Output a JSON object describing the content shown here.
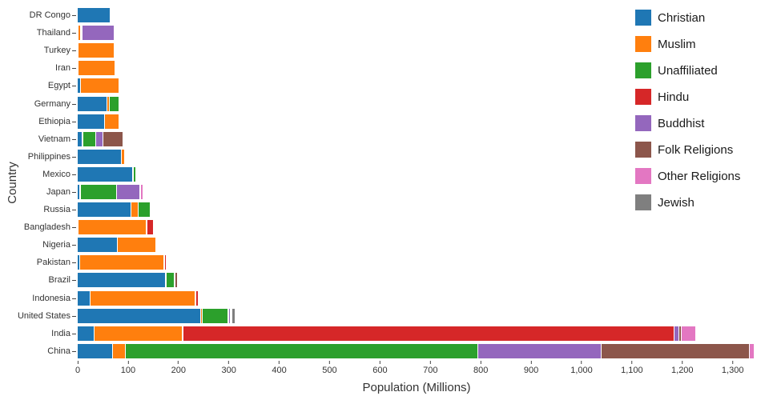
{
  "chart_data": {
    "type": "bar",
    "orientation": "horizontal",
    "stacked": true,
    "title": "",
    "xlabel": "Population (Millions)",
    "ylabel": "Country",
    "xlim": [
      0,
      1345
    ],
    "x_ticks": [
      0,
      100,
      200,
      300,
      400,
      500,
      600,
      700,
      800,
      900,
      1000,
      1100,
      1200,
      1300
    ],
    "grid": false,
    "legend_position": "top-right",
    "series": [
      {
        "name": "Christian",
        "color": "#1f77b4"
      },
      {
        "name": "Muslim",
        "color": "#ff7f0e"
      },
      {
        "name": "Unaffiliated",
        "color": "#2ca02c"
      },
      {
        "name": "Hindu",
        "color": "#d62728"
      },
      {
        "name": "Buddhist",
        "color": "#9467bd"
      },
      {
        "name": "Folk Religions",
        "color": "#8c564b"
      },
      {
        "name": "Other Religions",
        "color": "#e377c2"
      },
      {
        "name": "Jewish",
        "color": "#7f7f7f"
      }
    ],
    "rows": [
      {
        "country": "DR Congo",
        "values": [
          63.2,
          1.0,
          0.1,
          0,
          0,
          1.8,
          0,
          0
        ]
      },
      {
        "country": "Thailand",
        "values": [
          0.6,
          3.8,
          0.2,
          0.1,
          64.4,
          0.4,
          0,
          0
        ]
      },
      {
        "country": "Turkey",
        "values": [
          0.3,
          71.3,
          0.9,
          0,
          0,
          0,
          0.2,
          0
        ]
      },
      {
        "country": "Iran",
        "values": [
          0.3,
          73.6,
          0.2,
          0,
          0,
          0,
          0.1,
          0
        ]
      },
      {
        "country": "Egypt",
        "values": [
          4.3,
          76.8,
          0.2,
          0,
          0,
          0,
          0,
          0
        ]
      },
      {
        "country": "Germany",
        "values": [
          56.5,
          4.8,
          20.2,
          0,
          0.2,
          0,
          0.1,
          0.2
        ]
      },
      {
        "country": "Ethiopia",
        "values": [
          52.1,
          28.7,
          0.4,
          0,
          0,
          2.3,
          0,
          0
        ]
      },
      {
        "country": "Vietnam",
        "values": [
          7.2,
          0.2,
          26.0,
          0,
          14.4,
          39.8,
          0.2,
          0
        ]
      },
      {
        "country": "Philippines",
        "values": [
          86.4,
          5.1,
          0.1,
          0,
          0,
          1.4,
          0.1,
          0
        ]
      },
      {
        "country": "Mexico",
        "values": [
          107.8,
          0.1,
          5.3,
          0,
          0,
          0,
          0,
          0.1
        ]
      },
      {
        "country": "Japan",
        "values": [
          2.9,
          0.2,
          72.1,
          0,
          45.8,
          0.4,
          5.0,
          0
        ]
      },
      {
        "country": "Russia",
        "values": [
          105.2,
          14.3,
          23.2,
          0,
          0.1,
          0.2,
          0,
          0.2
        ]
      },
      {
        "country": "Bangladesh",
        "values": [
          0.7,
          134.4,
          0.4,
          13.5,
          0.8,
          0,
          0,
          0
        ]
      },
      {
        "country": "Nigeria",
        "values": [
          78.1,
          76.9,
          0.7,
          0,
          0,
          1.5,
          0.8,
          0
        ]
      },
      {
        "country": "Pakistan",
        "values": [
          2.8,
          167.4,
          0.2,
          3.3,
          0,
          0,
          0.1,
          0
        ]
      },
      {
        "country": "Brazil",
        "values": [
          173.3,
          0.1,
          15.4,
          0,
          0.5,
          5.4,
          0.3,
          0.1
        ]
      },
      {
        "country": "Indonesia",
        "values": [
          23.7,
          209.1,
          0.2,
          4.1,
          1.7,
          0.8,
          0.1,
          0
        ]
      },
      {
        "country": "United States",
        "values": [
          243.1,
          2.8,
          50.8,
          1.8,
          3.6,
          0.6,
          1.9,
          5.7
        ]
      },
      {
        "country": "India",
        "values": [
          31.1,
          176.2,
          0.3,
          973.8,
          9.3,
          5.8,
          27.6,
          0
        ]
      },
      {
        "country": "China",
        "values": [
          68.4,
          24.7,
          700.7,
          0,
          244.1,
          294.3,
          9.1,
          0
        ]
      }
    ]
  }
}
